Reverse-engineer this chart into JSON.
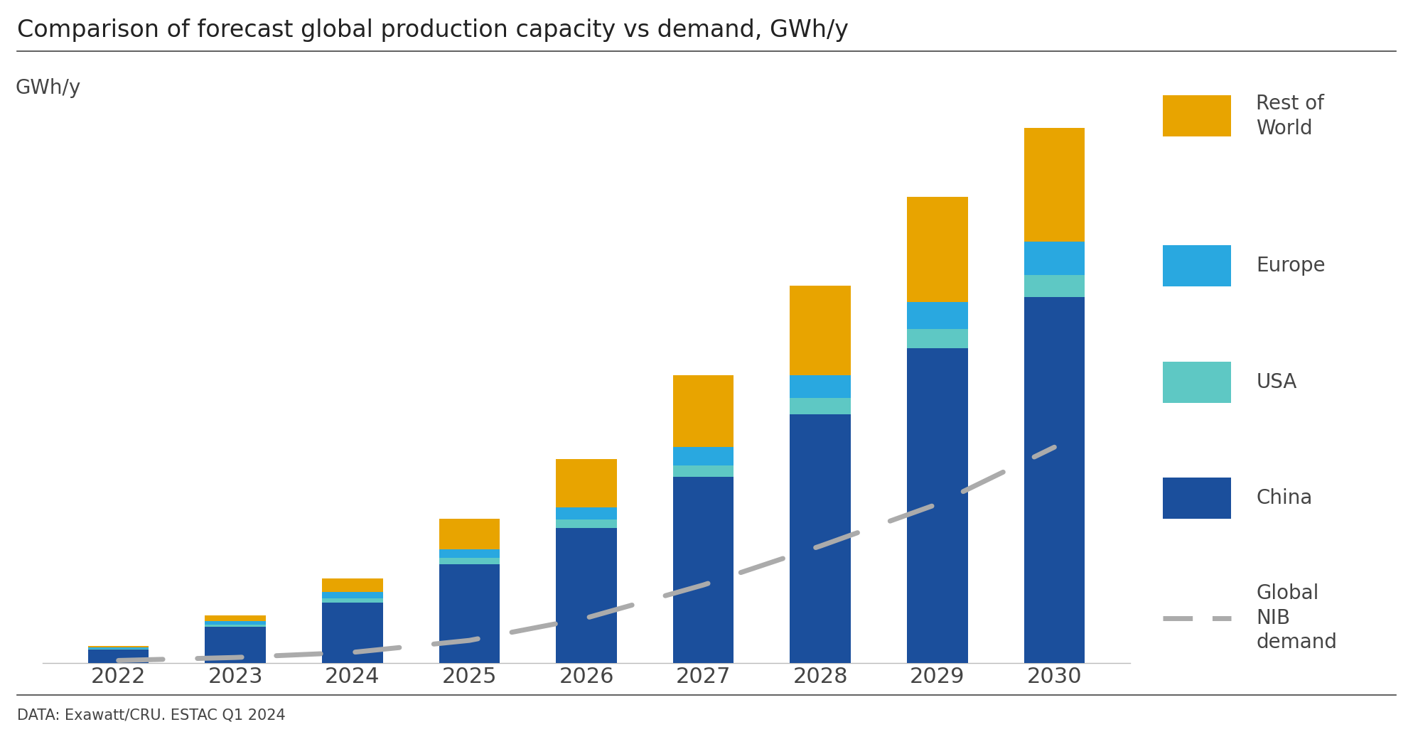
{
  "years": [
    2022,
    2023,
    2024,
    2025,
    2026,
    2027,
    2028,
    2029,
    2030
  ],
  "china": [
    45,
    120,
    200,
    330,
    450,
    620,
    830,
    1050,
    1220
  ],
  "usa": [
    3,
    8,
    15,
    20,
    28,
    40,
    55,
    65,
    75
  ],
  "europe": [
    4,
    12,
    22,
    30,
    42,
    60,
    75,
    90,
    110
  ],
  "rest_of_world": [
    5,
    18,
    45,
    100,
    160,
    240,
    300,
    350,
    380
  ],
  "demand": [
    8,
    18,
    35,
    75,
    150,
    260,
    390,
    530,
    720
  ],
  "colors": {
    "china": "#1B4F9C",
    "usa": "#5EC8C4",
    "europe": "#29A8E0",
    "rest_of_world": "#E8A400",
    "demand": "#ABABAB"
  },
  "title": "Comparison of forecast global production capacity vs demand, GWh/y",
  "ylabel": "GWh/y",
  "source": "DATA: Exawatt/CRU. ESTAC Q1 2024",
  "legend_labels": {
    "rest_of_world": "Rest of\nWorld",
    "europe": "Europe",
    "usa": "USA",
    "china": "China",
    "demand": "Global\nNIB\ndemand"
  },
  "ylim": [
    0,
    1850
  ],
  "bar_width": 0.52
}
